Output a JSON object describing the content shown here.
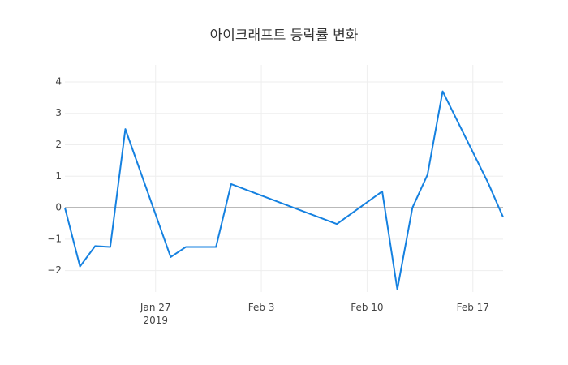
{
  "chart_data": {
    "type": "line",
    "title": "아이크래프트 등락률 변화",
    "x": [
      "2019-01-21",
      "2019-01-22",
      "2019-01-23",
      "2019-01-24",
      "2019-01-25",
      "2019-01-28",
      "2019-01-29",
      "2019-01-31",
      "2019-02-01",
      "2019-02-08",
      "2019-02-11",
      "2019-02-12",
      "2019-02-13",
      "2019-02-14",
      "2019-02-15",
      "2019-02-18",
      "2019-02-19"
    ],
    "series": [
      {
        "name": "등락률",
        "color": "#1581e0",
        "values": [
          0,
          -1.87,
          -1.22,
          -1.25,
          2.5,
          -1.57,
          -1.25,
          -1.25,
          0.75,
          -0.52,
          0.52,
          -2.6,
          0,
          1.05,
          3.7,
          0.8,
          -0.3
        ]
      }
    ],
    "xlim": [
      "2019-01-21",
      "2019-02-19"
    ],
    "xticks": [
      {
        "value": "2019-01-27",
        "label": "Jan 27\n2019"
      },
      {
        "value": "2019-02-03",
        "label": "Feb 3"
      },
      {
        "value": "2019-02-10",
        "label": "Feb 10"
      },
      {
        "value": "2019-02-17",
        "label": "Feb 17"
      }
    ],
    "ylim": [
      -2.68,
      4.54
    ],
    "yticks": [
      {
        "value": -2,
        "label": "−2"
      },
      {
        "value": -1,
        "label": "−1"
      },
      0,
      1,
      2,
      3,
      4
    ],
    "grid": true
  }
}
